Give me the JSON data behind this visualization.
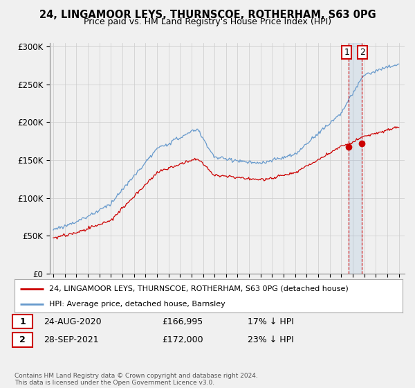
{
  "title_line1": "24, LINGAMOOR LEYS, THURNSCOE, ROTHERHAM, S63 0PG",
  "title_line2": "Price paid vs. HM Land Registry's House Price Index (HPI)",
  "ylabel_ticks": [
    "£0",
    "£50K",
    "£100K",
    "£150K",
    "£200K",
    "£250K",
    "£300K"
  ],
  "ytick_values": [
    0,
    50000,
    100000,
    150000,
    200000,
    250000,
    300000
  ],
  "ylim": [
    0,
    305000
  ],
  "xlim_start": 1994.7,
  "xlim_end": 2025.5,
  "legend_line1": "24, LINGAMOOR LEYS, THURNSCOE, ROTHERHAM, S63 0PG (detached house)",
  "legend_line2": "HPI: Average price, detached house, Barnsley",
  "sale1_date": "24-AUG-2020",
  "sale1_price": "£166,995",
  "sale1_hpi": "17% ↓ HPI",
  "sale2_date": "28-SEP-2021",
  "sale2_price": "£172,000",
  "sale2_hpi": "23% ↓ HPI",
  "footer": "Contains HM Land Registry data © Crown copyright and database right 2024.\nThis data is licensed under the Open Government Licence v3.0.",
  "hpi_color": "#6699cc",
  "price_color": "#cc0000",
  "marker_color": "#cc0000",
  "vline_color": "#cc0000",
  "background_color": "#f0f0f0",
  "grid_color": "#cccccc",
  "sale1_year": 2020.625,
  "sale2_year": 2021.75,
  "sale1_price_val": 166995,
  "sale2_price_val": 172000
}
